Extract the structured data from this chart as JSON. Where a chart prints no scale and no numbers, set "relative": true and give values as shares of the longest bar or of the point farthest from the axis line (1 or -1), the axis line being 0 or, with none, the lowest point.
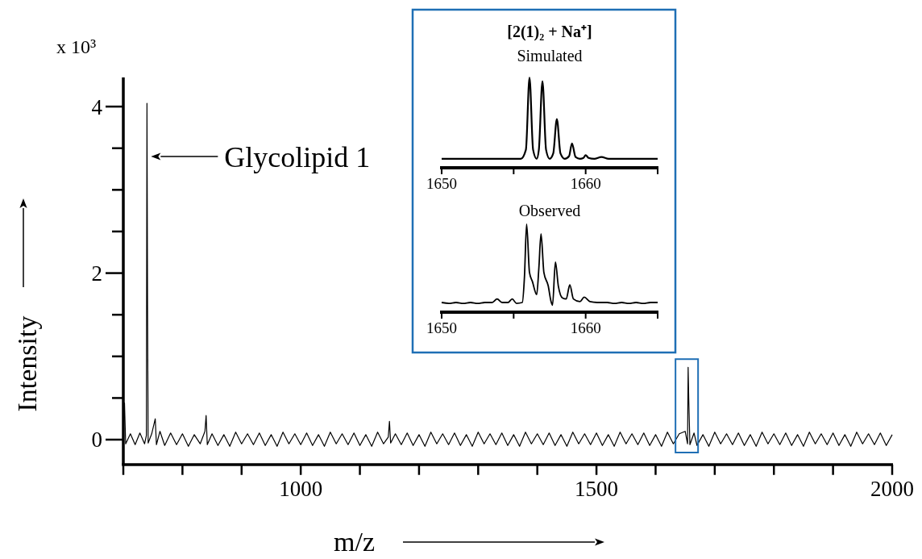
{
  "chart_data": [
    {
      "type": "line",
      "xlabel": "m/z",
      "ylabel": "Intensity",
      "annotations": [
        "x 10³",
        {
          "text": "Glycolipid 1",
          "x": 740,
          "y": 3.4
        }
      ],
      "xlim": [
        700,
        2000
      ],
      "xticks": [
        {
          "value": 700,
          "label": null
        },
        {
          "value": 800,
          "label": null
        },
        {
          "value": 900,
          "label": null
        },
        1000,
        {
          "value": 1100,
          "label": null
        },
        {
          "value": 1200,
          "label": null
        },
        {
          "value": 1300,
          "label": null
        },
        {
          "value": 1400,
          "label": null
        },
        1500,
        {
          "value": 1600,
          "label": null
        },
        {
          "value": 1700,
          "label": null
        },
        {
          "value": 1800,
          "label": null
        },
        {
          "value": 1900,
          "label": null
        },
        2000
      ],
      "ylim": [
        -0.3,
        4.35
      ],
      "yticks": [
        0,
        {
          "value": 0.5,
          "label": null
        },
        {
          "value": 1,
          "label": null
        },
        {
          "value": 1.5,
          "label": null
        },
        2,
        {
          "value": 2.5,
          "label": null
        },
        {
          "value": 3,
          "label": null
        },
        {
          "value": 3.5,
          "label": null
        },
        4
      ],
      "series": [
        {
          "color": "#000000",
          "x": [
            700,
            702,
            704,
            712,
            720,
            728,
            736,
            739,
            740,
            741,
            742,
            748,
            754,
            756,
            762,
            770,
            780,
            790,
            800,
            810,
            820,
            830,
            838,
            840,
            842,
            850,
            860,
            870,
            880,
            890,
            900,
            910,
            920,
            930,
            940,
            950,
            960,
            970,
            980,
            990,
            1000,
            1010,
            1020,
            1030,
            1040,
            1050,
            1060,
            1070,
            1080,
            1090,
            1100,
            1110,
            1120,
            1130,
            1140,
            1148,
            1150,
            1152,
            1160,
            1170,
            1180,
            1190,
            1200,
            1210,
            1220,
            1230,
            1240,
            1250,
            1260,
            1270,
            1280,
            1290,
            1300,
            1310,
            1320,
            1330,
            1340,
            1350,
            1360,
            1370,
            1380,
            1390,
            1400,
            1410,
            1420,
            1430,
            1440,
            1450,
            1460,
            1470,
            1480,
            1490,
            1500,
            1510,
            1520,
            1530,
            1540,
            1550,
            1560,
            1570,
            1580,
            1590,
            1600,
            1610,
            1620,
            1630,
            1640,
            1650,
            1654,
            1655,
            1656,
            1658,
            1665,
            1670,
            1680,
            1690,
            1700,
            1710,
            1720,
            1730,
            1740,
            1750,
            1760,
            1770,
            1780,
            1790,
            1800,
            1810,
            1820,
            1830,
            1840,
            1850,
            1860,
            1870,
            1880,
            1890,
            1900,
            1910,
            1920,
            1930,
            1940,
            1950,
            1960,
            1970,
            1980,
            1990,
            2000
          ],
          "values": [
            0.05,
            0.44,
            -0.05,
            0.07,
            -0.06,
            0.08,
            -0.05,
            0.05,
            4.04,
            1.62,
            -0.04,
            0.07,
            0.25,
            -0.06,
            0.1,
            -0.07,
            0.08,
            -0.06,
            0.07,
            -0.08,
            0.06,
            -0.05,
            0.1,
            0.29,
            -0.06,
            0.07,
            -0.07,
            0.06,
            -0.08,
            0.09,
            -0.05,
            0.07,
            -0.06,
            0.08,
            -0.07,
            0.06,
            -0.08,
            0.09,
            -0.05,
            0.07,
            -0.06,
            0.08,
            -0.07,
            0.06,
            -0.08,
            0.09,
            -0.05,
            0.07,
            -0.06,
            0.08,
            -0.07,
            0.06,
            -0.08,
            0.09,
            -0.05,
            0.03,
            0.22,
            -0.04,
            0.07,
            -0.06,
            0.08,
            -0.07,
            0.06,
            -0.08,
            0.09,
            -0.05,
            0.07,
            -0.06,
            0.08,
            -0.07,
            0.06,
            -0.08,
            0.09,
            -0.05,
            0.07,
            -0.06,
            0.08,
            -0.07,
            0.06,
            -0.08,
            0.09,
            -0.05,
            0.07,
            -0.06,
            0.08,
            -0.07,
            0.06,
            -0.08,
            0.09,
            -0.05,
            0.07,
            -0.06,
            0.08,
            -0.07,
            0.06,
            -0.08,
            0.09,
            -0.05,
            0.07,
            -0.06,
            0.08,
            -0.07,
            0.06,
            -0.08,
            0.09,
            -0.05,
            0.07,
            0.1,
            -0.05,
            0.87,
            0.5,
            -0.06,
            0.08,
            -0.07,
            0.06,
            -0.08,
            0.09,
            -0.05,
            0.07,
            -0.06,
            0.08,
            -0.07,
            0.06,
            -0.08,
            0.09,
            -0.05,
            0.07,
            -0.06,
            0.08,
            -0.07,
            0.06,
            -0.08,
            0.09,
            -0.05,
            0.07,
            -0.06,
            0.08,
            -0.07,
            0.06,
            -0.08,
            0.09,
            -0.05,
            0.07,
            -0.06,
            0.08,
            -0.07,
            0.06
          ]
        }
      ]
    },
    {
      "type": "line",
      "relative": true,
      "title": "[2(1)₂ + Na⁺]",
      "subtitle": "Simulated",
      "xlim": [
        1650,
        1665
      ],
      "xticks": [
        1650,
        {
          "value": 1655,
          "label": null
        },
        1660,
        {
          "value": 1665,
          "label": null
        }
      ],
      "series": [
        {
          "color": "#000000",
          "x": [
            1650,
            1655.5,
            1655.85,
            1656.1,
            1656.35,
            1656.6,
            1656.75,
            1657,
            1657.25,
            1657.5,
            1657.75,
            1658,
            1658.25,
            1658.55,
            1658.85,
            1659.05,
            1659.3,
            1659.6,
            1659.85,
            1660,
            1660.2,
            1660.6,
            1661.1,
            1661.6,
            1665
          ],
          "values": [
            0.1,
            0.1,
            0.2,
            1,
            0.2,
            0.1,
            0.2,
            0.96,
            0.2,
            0.1,
            0.16,
            0.54,
            0.16,
            0.1,
            0.13,
            0.27,
            0.12,
            0.1,
            0.11,
            0.14,
            0.11,
            0.1,
            0.12,
            0.1,
            0.1
          ]
        }
      ]
    },
    {
      "type": "line",
      "relative": true,
      "title": "Observed",
      "xlim": [
        1650,
        1665
      ],
      "xticks": [
        1650,
        {
          "value": 1655,
          "label": null
        },
        1660,
        {
          "value": 1665,
          "label": null
        }
      ],
      "series": [
        {
          "color": "#000000",
          "x": [
            1650,
            1650.5,
            1651,
            1651.5,
            1652,
            1652.5,
            1653,
            1653.5,
            1653.85,
            1654.2,
            1654.6,
            1654.9,
            1655.2,
            1655.6,
            1655.75,
            1655.9,
            1656.1,
            1656.3,
            1656.6,
            1656.75,
            1656.9,
            1657.1,
            1657.4,
            1657.6,
            1657.7,
            1657.9,
            1658.1,
            1658.4,
            1658.65,
            1658.9,
            1659.15,
            1659.6,
            1659.9,
            1660.3,
            1660.8,
            1661.5,
            1662,
            1662.5,
            1663,
            1663.5,
            1664,
            1664.5,
            1665
          ],
          "values": [
            0.11,
            0.1,
            0.11,
            0.1,
            0.11,
            0.1,
            0.11,
            0.11,
            0.15,
            0.11,
            0.11,
            0.15,
            0.1,
            0.11,
            0.4,
            1,
            0.45,
            0.35,
            0.2,
            0.5,
            0.89,
            0.45,
            0.3,
            0.12,
            0.08,
            0.57,
            0.3,
            0.16,
            0.15,
            0.31,
            0.15,
            0.12,
            0.17,
            0.12,
            0.11,
            0.11,
            0.1,
            0.11,
            0.1,
            0.11,
            0.1,
            0.11,
            0.11
          ]
        }
      ]
    }
  ]
}
